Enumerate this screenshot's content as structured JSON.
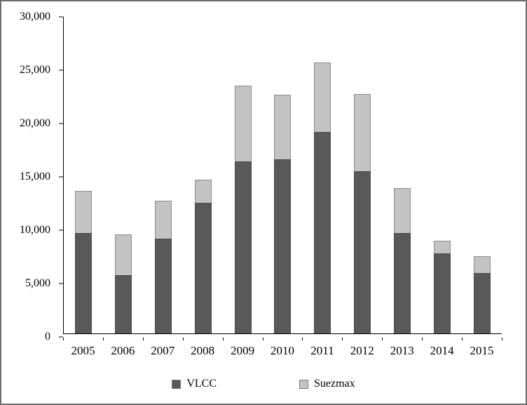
{
  "chart_data": {
    "type": "bar",
    "stacked": true,
    "title": "",
    "xlabel": "",
    "ylabel": "",
    "categories": [
      "2005",
      "2006",
      "2007",
      "2008",
      "2009",
      "2010",
      "2011",
      "2012",
      "2013",
      "2014",
      "2015"
    ],
    "series": [
      {
        "name": "VLCC",
        "color": "#595959",
        "border_color": "#4a4a4a",
        "values": [
          9500,
          5500,
          9000,
          12400,
          16300,
          16500,
          19100,
          15400,
          9500,
          7600,
          5700
        ]
      },
      {
        "name": "Suezmax",
        "color": "#c3c3c3",
        "border_color": "#8c8c8c",
        "values": [
          4000,
          3900,
          3600,
          2200,
          7200,
          6100,
          6600,
          7300,
          4300,
          1200,
          1600
        ]
      }
    ],
    "ylim": [
      0,
      30000
    ],
    "ytick_step": 5000,
    "ytick_labels": [
      "0",
      "5,000",
      "10,000",
      "15,000",
      "20,000",
      "25,000",
      "30,000"
    ],
    "grid": false,
    "legend_position": "bottom"
  }
}
